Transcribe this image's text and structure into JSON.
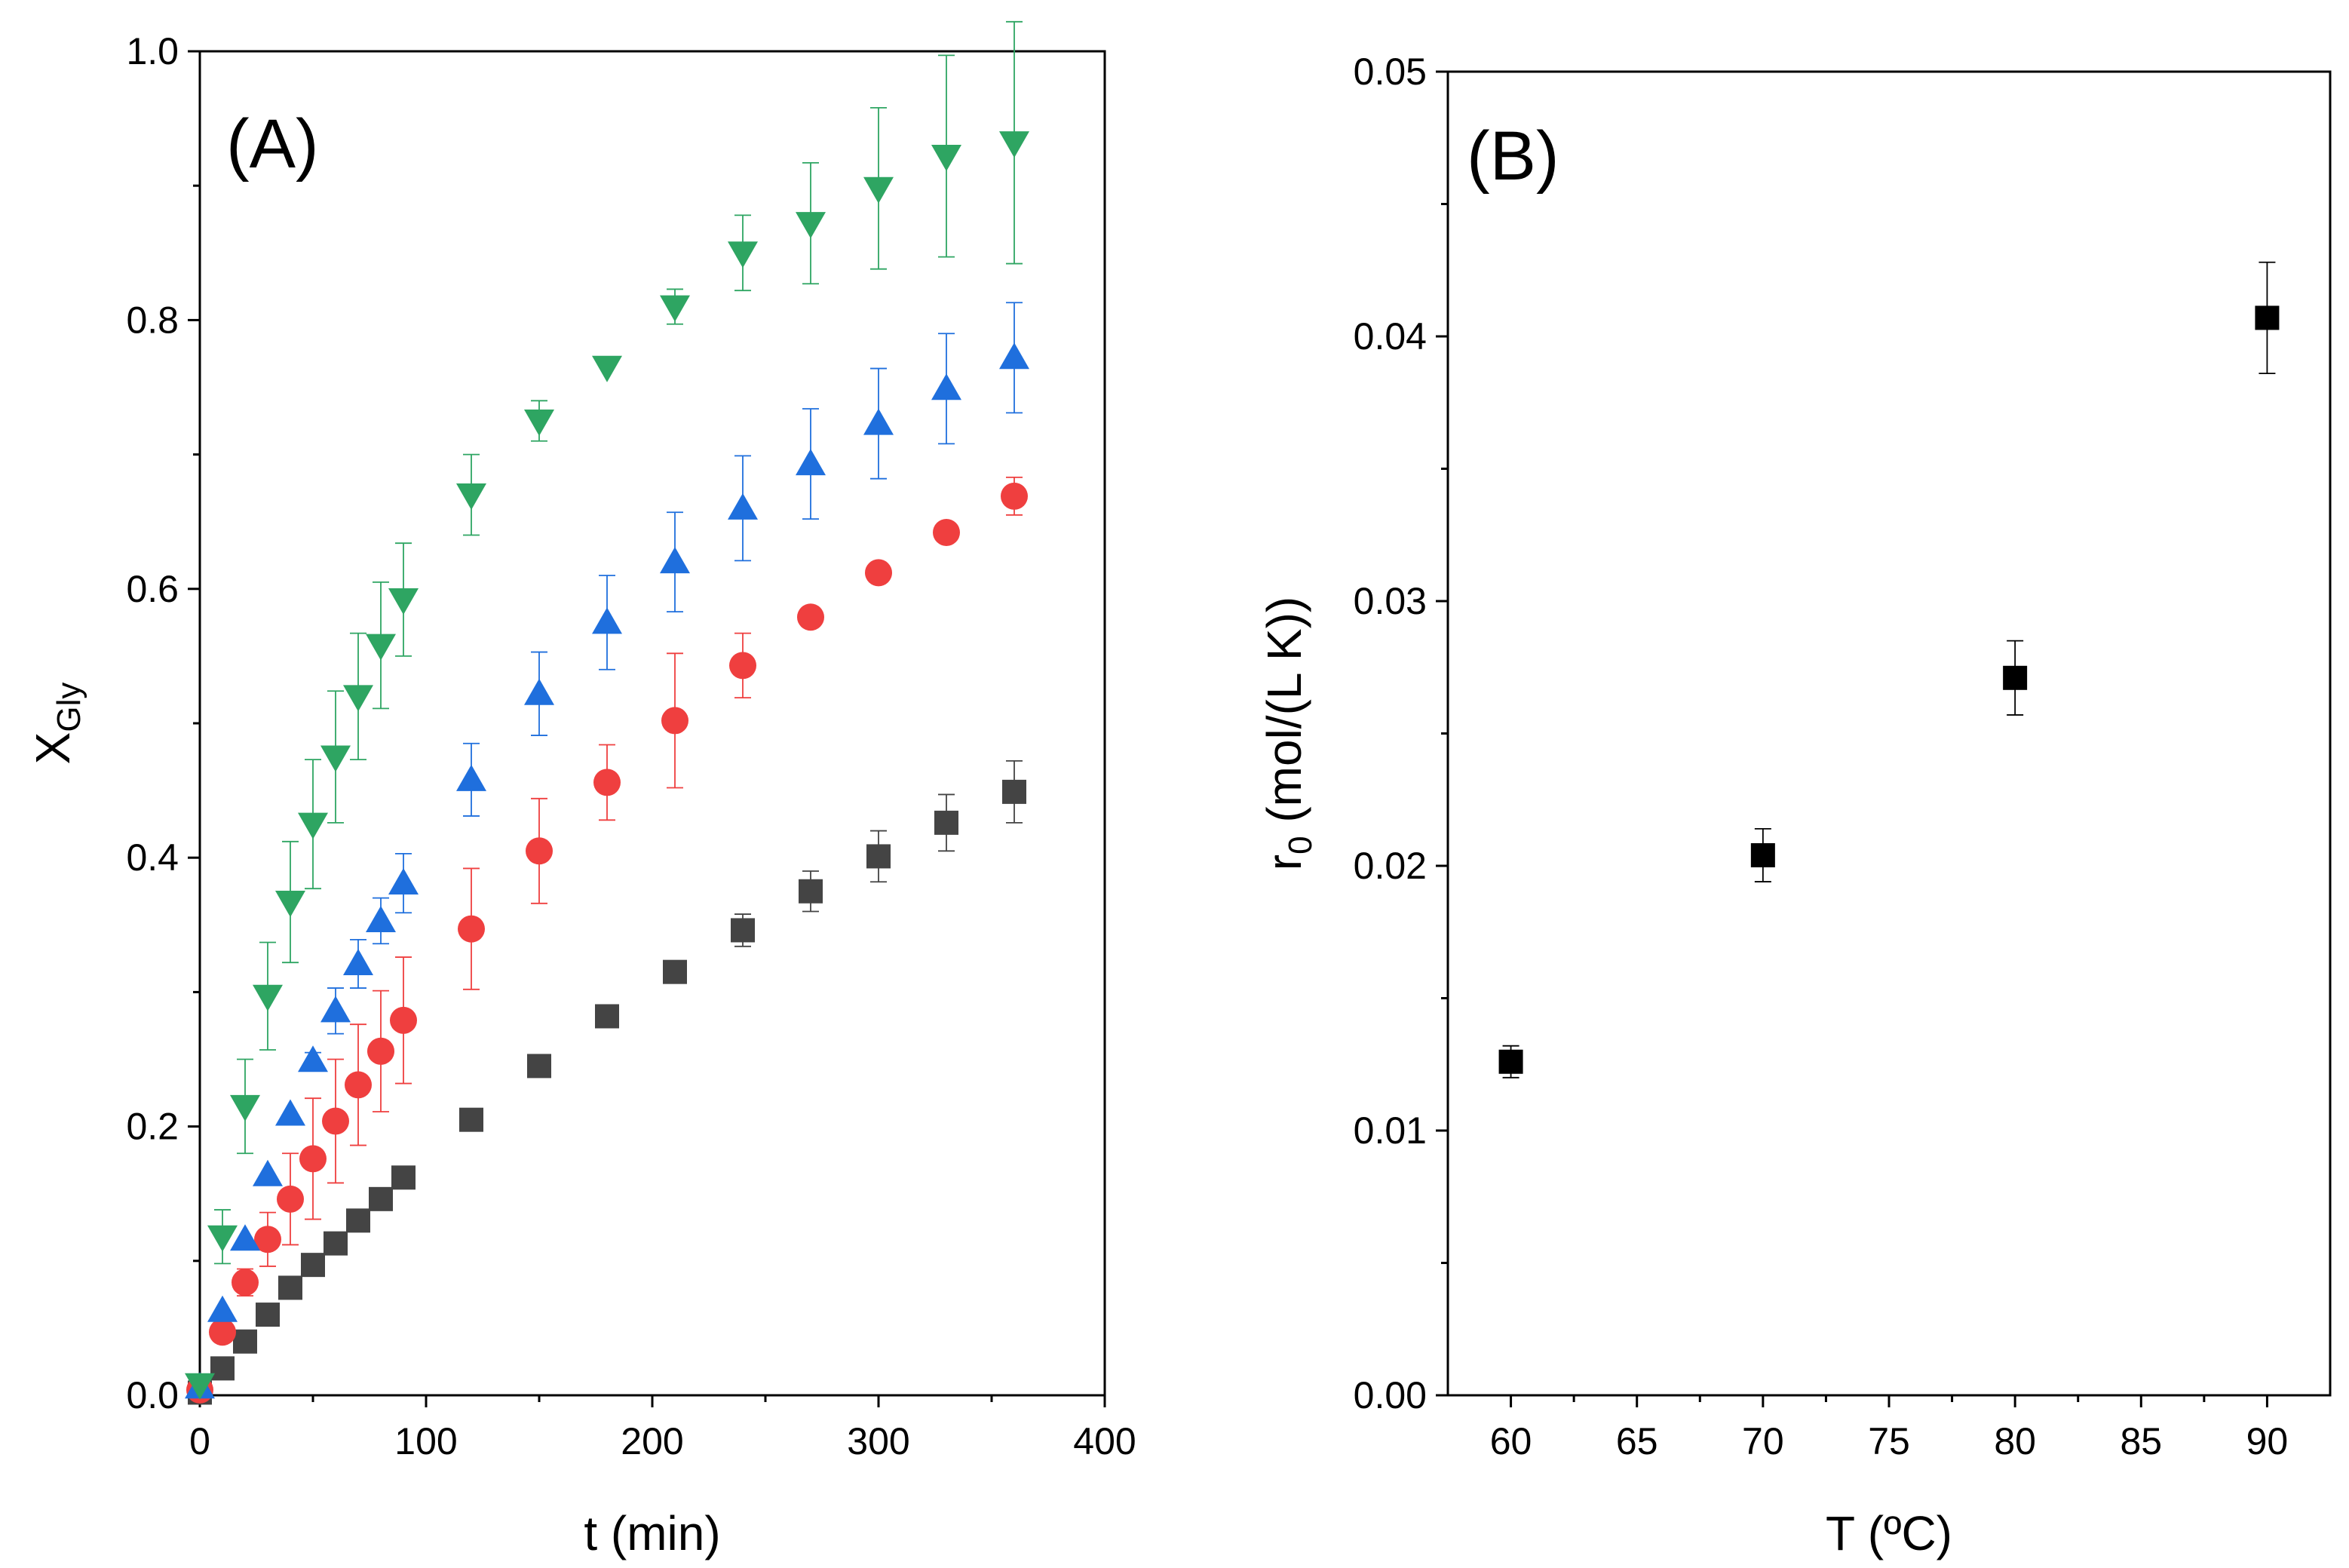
{
  "chart_data": [
    {
      "type": "scatter",
      "panel_label": "(A)",
      "xlabel": "t (min)",
      "ylabel_main": "X",
      "ylabel_sub": "Gly",
      "xlim": [
        0,
        400
      ],
      "ylim": [
        0,
        1.0
      ],
      "xticks": [
        0,
        100,
        200,
        300,
        400
      ],
      "yticks": [
        0.0,
        0.2,
        0.4,
        0.6,
        0.8,
        1.0
      ],
      "xtick_labels": [
        "0",
        "100",
        "200",
        "300",
        "400"
      ],
      "ytick_labels": [
        "0.0",
        "0.2",
        "0.4",
        "0.6",
        "0.8",
        "1.0"
      ],
      "grid": false,
      "series": [
        {
          "marker": "square",
          "color": "#444444",
          "x": [
            0,
            10,
            20,
            30,
            40,
            50,
            60,
            70,
            80,
            90,
            120,
            150,
            180,
            210,
            240,
            270,
            300,
            330,
            360
          ],
          "y": [
            0.002,
            0.02,
            0.04,
            0.06,
            0.08,
            0.097,
            0.113,
            0.13,
            0.146,
            0.162,
            0.205,
            0.245,
            0.282,
            0.315,
            0.346,
            0.375,
            0.401,
            0.426,
            0.449
          ],
          "err": [
            0,
            0,
            0,
            0,
            0,
            0,
            0,
            0,
            0,
            0,
            0,
            0,
            0,
            0,
            0.012,
            0.015,
            0.019,
            0.021,
            0.023
          ]
        },
        {
          "marker": "circle",
          "color": "#ef3f3f",
          "x": [
            0,
            10,
            20,
            30,
            40,
            50,
            60,
            70,
            80,
            90,
            120,
            150,
            180,
            210,
            240,
            270,
            300,
            330,
            360
          ],
          "y": [
            0.004,
            0.047,
            0.084,
            0.116,
            0.146,
            0.176,
            0.204,
            0.231,
            0.256,
            0.279,
            0.347,
            0.405,
            0.456,
            0.502,
            0.543,
            0.579,
            0.612,
            0.642,
            0.669
          ],
          "err": [
            0,
            0,
            0.01,
            0.02,
            0.034,
            0.045,
            0.046,
            0.045,
            0.045,
            0.047,
            0.045,
            0.039,
            0.028,
            0.05,
            0.024,
            0,
            0,
            0,
            0.014
          ]
        },
        {
          "marker": "triangle-up",
          "color": "#1f6fdd",
          "x": [
            0,
            10,
            20,
            30,
            40,
            50,
            60,
            70,
            80,
            90,
            120,
            150,
            180,
            210,
            240,
            270,
            300,
            330,
            360
          ],
          "y": [
            0.006,
            0.063,
            0.116,
            0.164,
            0.209,
            0.249,
            0.286,
            0.321,
            0.353,
            0.381,
            0.458,
            0.522,
            0.575,
            0.62,
            0.66,
            0.693,
            0.723,
            0.749,
            0.772
          ],
          "err": [
            0,
            0,
            0,
            0,
            0,
            0.006,
            0.017,
            0.018,
            0.017,
            0.022,
            0.027,
            0.031,
            0.035,
            0.037,
            0.039,
            0.041,
            0.041,
            0.041,
            0.041
          ]
        },
        {
          "marker": "triangle-down",
          "color": "#2ea562",
          "x": [
            0,
            10,
            20,
            30,
            40,
            50,
            60,
            70,
            80,
            90,
            120,
            150,
            180,
            210,
            240,
            270,
            300,
            330,
            360
          ],
          "y": [
            0.008,
            0.118,
            0.215,
            0.297,
            0.367,
            0.425,
            0.475,
            0.52,
            0.558,
            0.592,
            0.67,
            0.725,
            0.765,
            0.81,
            0.85,
            0.872,
            0.898,
            0.922,
            0.932
          ],
          "err": [
            0,
            0.02,
            0.035,
            0.04,
            0.045,
            0.048,
            0.049,
            0.047,
            0.047,
            0.042,
            0.03,
            0.015,
            0,
            0.013,
            0.028,
            0.045,
            0.06,
            0.075,
            0.09
          ]
        }
      ]
    },
    {
      "type": "scatter",
      "panel_label": "(B)",
      "xlabel": "T (ºC)",
      "ylabel_main": "r",
      "ylabel_sub": "0",
      "ylabel_rest": " (mol/(L K))",
      "xlim": [
        57.5,
        92.5
      ],
      "ylim": [
        0.0,
        0.05
      ],
      "xticks": [
        60,
        65,
        70,
        75,
        80,
        85,
        90
      ],
      "yticks": [
        0.0,
        0.01,
        0.02,
        0.03,
        0.04,
        0.05
      ],
      "xtick_labels": [
        "60",
        "65",
        "70",
        "75",
        "80",
        "85",
        "90"
      ],
      "ytick_labels": [
        "0.00",
        "0.01",
        "0.02",
        "0.03",
        "0.04",
        "0.05"
      ],
      "grid": false,
      "series": [
        {
          "marker": "square",
          "color": "#000000",
          "x": [
            60,
            70,
            80,
            90
          ],
          "y": [
            0.0126,
            0.0204,
            0.0271,
            0.0407
          ],
          "err": [
            0.0006,
            0.001,
            0.0014,
            0.0021
          ]
        }
      ]
    }
  ]
}
